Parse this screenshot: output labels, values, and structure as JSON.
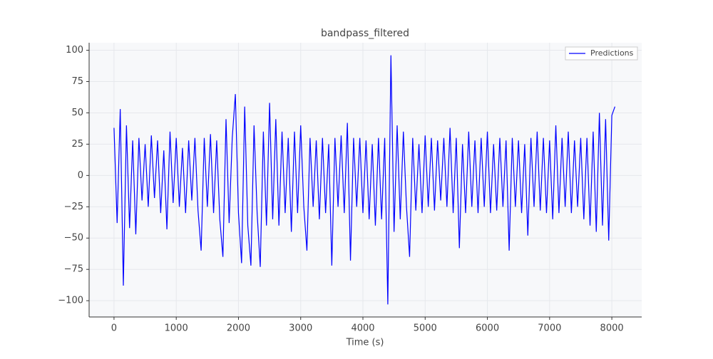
{
  "chart_data": {
    "type": "line",
    "title": "bandpass_filtered",
    "xlabel": "Time (s)",
    "x": [
      0,
      50,
      100,
      150,
      200,
      250,
      300,
      350,
      400,
      450,
      500,
      550,
      600,
      650,
      700,
      750,
      800,
      850,
      900,
      950,
      1000,
      1050,
      1100,
      1150,
      1200,
      1250,
      1300,
      1350,
      1400,
      1450,
      1500,
      1550,
      1600,
      1650,
      1700,
      1750,
      1800,
      1850,
      1900,
      1950,
      2000,
      2050,
      2100,
      2150,
      2200,
      2250,
      2300,
      2350,
      2400,
      2450,
      2500,
      2550,
      2600,
      2650,
      2700,
      2750,
      2800,
      2850,
      2900,
      2950,
      3000,
      3050,
      3100,
      3150,
      3200,
      3250,
      3300,
      3350,
      3400,
      3450,
      3500,
      3550,
      3600,
      3650,
      3700,
      3750,
      3800,
      3850,
      3900,
      3950,
      4000,
      4050,
      4100,
      4150,
      4200,
      4250,
      4300,
      4350,
      4400,
      4450,
      4500,
      4550,
      4600,
      4650,
      4700,
      4750,
      4800,
      4850,
      4900,
      4950,
      5000,
      5050,
      5100,
      5150,
      5200,
      5250,
      5300,
      5350,
      5400,
      5450,
      5500,
      5550,
      5600,
      5650,
      5700,
      5750,
      5800,
      5850,
      5900,
      5950,
      6000,
      6050,
      6100,
      6150,
      6200,
      6250,
      6300,
      6350,
      6400,
      6450,
      6500,
      6550,
      6600,
      6650,
      6700,
      6750,
      6800,
      6850,
      6900,
      6950,
      7000,
      7050,
      7100,
      7150,
      7200,
      7250,
      7300,
      7350,
      7400,
      7450,
      7500,
      7550,
      7600,
      7650,
      7700,
      7750,
      7800,
      7850,
      7900,
      7950,
      8000,
      8050
    ],
    "series": [
      {
        "name": "Predictions",
        "color": "#0000ff",
        "values": [
          38,
          -38,
          53,
          -88,
          40,
          -42,
          28,
          -47,
          30,
          -20,
          25,
          -25,
          32,
          -18,
          28,
          -30,
          20,
          -43,
          35,
          -22,
          30,
          -25,
          22,
          -30,
          28,
          -20,
          30,
          -28,
          -60,
          30,
          -25,
          33,
          -30,
          28,
          -35,
          -65,
          45,
          -38,
          30,
          65,
          -30,
          -70,
          55,
          -40,
          -72,
          40,
          -30,
          -73,
          35,
          -40,
          58,
          -35,
          45,
          -40,
          35,
          -30,
          30,
          -45,
          35,
          -30,
          40,
          -25,
          -60,
          30,
          -25,
          28,
          -35,
          30,
          -30,
          25,
          -72,
          30,
          -25,
          32,
          -30,
          42,
          -68,
          30,
          -25,
          30,
          -30,
          28,
          -35,
          25,
          -40,
          30,
          -35,
          30,
          -103,
          96,
          -45,
          40,
          -35,
          35,
          -25,
          -65,
          30,
          -28,
          25,
          -30,
          32,
          -25,
          30,
          -28,
          28,
          -20,
          30,
          -25,
          38,
          -30,
          30,
          -58,
          25,
          -30,
          35,
          -25,
          28,
          -30,
          30,
          -25,
          35,
          -30,
          25,
          -28,
          30,
          -25,
          28,
          -60,
          30,
          -25,
          28,
          -30,
          25,
          -48,
          30,
          -25,
          35,
          -28,
          30,
          -30,
          28,
          -35,
          40,
          -30,
          30,
          -25,
          35,
          -30,
          28,
          -25,
          30,
          -35,
          30,
          -40,
          35,
          -45,
          50,
          -40,
          45,
          -52,
          48,
          55
        ]
      }
    ],
    "xlim": [
      -400,
      8480
    ],
    "ylim": [
      -113,
      106
    ],
    "xticks": [
      0,
      1000,
      2000,
      3000,
      4000,
      5000,
      6000,
      7000,
      8000
    ],
    "yticks": [
      {
        "value": -100,
        "label": "−100"
      },
      {
        "value": -75,
        "label": "−75"
      },
      {
        "value": -50,
        "label": "−50"
      },
      {
        "value": -25,
        "label": "−25"
      },
      0,
      25,
      50,
      75,
      100
    ],
    "grid": true,
    "legend": "upper right"
  }
}
